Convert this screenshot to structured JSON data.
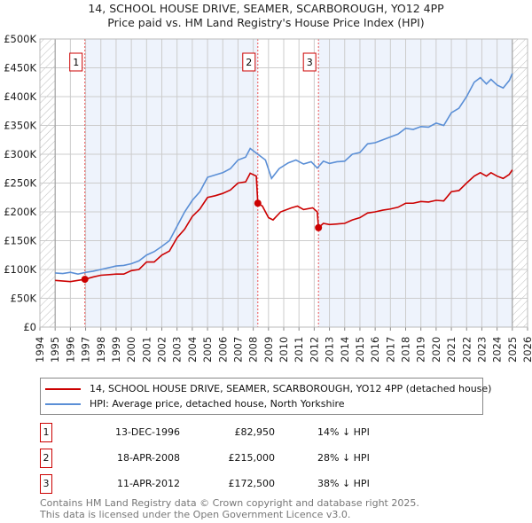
{
  "chart_data": {
    "type": "line",
    "title": "14, SCHOOL HOUSE DRIVE, SEAMER, SCARBOROUGH, YO12 4PP",
    "subtitle": "Price paid vs. HM Land Registry's House Price Index (HPI)",
    "xlim": [
      1994,
      2026
    ],
    "ylim": [
      0,
      500000
    ],
    "xticks": [
      "1994",
      "1995",
      "1996",
      "1997",
      "1998",
      "1999",
      "2000",
      "2001",
      "2002",
      "2003",
      "2004",
      "2005",
      "2006",
      "2007",
      "2008",
      "2009",
      "2010",
      "2011",
      "2012",
      "2013",
      "2014",
      "2015",
      "2016",
      "2017",
      "2018",
      "2019",
      "2020",
      "2021",
      "2022",
      "2023",
      "2024",
      "2025",
      "2026"
    ],
    "yticks": [
      {
        "v": 0,
        "l": "£0"
      },
      {
        "v": 50000,
        "l": "£50K"
      },
      {
        "v": 100000,
        "l": "£100K"
      },
      {
        "v": 150000,
        "l": "£150K"
      },
      {
        "v": 200000,
        "l": "£200K"
      },
      {
        "v": 250000,
        "l": "£250K"
      },
      {
        "v": 300000,
        "l": "£300K"
      },
      {
        "v": 350000,
        "l": "£350K"
      },
      {
        "v": 400000,
        "l": "£400K"
      },
      {
        "v": 450000,
        "l": "£450K"
      },
      {
        "v": 500000,
        "l": "£500K"
      }
    ],
    "grid": true,
    "data_range": [
      1995,
      2025
    ],
    "series": [
      {
        "name": "14, SCHOOL HOUSE DRIVE, SEAMER, SCARBOROUGH, YO12 4PP (detached house)",
        "color": "#cc0000",
        "x": [
          1995,
          1996,
          1996.95,
          1997.5,
          1998,
          1999,
          1999.5,
          2000,
          2000.5,
          2001,
          2001.5,
          2002,
          2002.5,
          2003,
          2003.5,
          2004,
          2004.5,
          2005,
          2005.5,
          2006,
          2006.5,
          2007,
          2007.5,
          2007.8,
          2008.2,
          2008.3,
          2008.6,
          2009,
          2009.3,
          2009.8,
          2010.5,
          2010.9,
          2011.3,
          2011.9,
          2012.2,
          2012.28,
          2012.6,
          2013,
          2014,
          2014.5,
          2015,
          2015.5,
          2016,
          2016.5,
          2017,
          2017.5,
          2018,
          2018.5,
          2019,
          2019.5,
          2020,
          2020.5,
          2021,
          2021.5,
          2022,
          2022.5,
          2022.9,
          2023.3,
          2023.6,
          2024,
          2024.4,
          2024.8,
          2025
        ],
        "y": [
          81000,
          79000,
          82950,
          87000,
          90000,
          92000,
          92000,
          98000,
          100000,
          113000,
          113000,
          125000,
          132000,
          155000,
          170000,
          192000,
          205000,
          225000,
          228000,
          232000,
          238000,
          250000,
          252000,
          267000,
          262000,
          215000,
          210000,
          190000,
          186000,
          200000,
          207000,
          210000,
          204000,
          207000,
          200000,
          172500,
          180000,
          178000,
          180000,
          186000,
          190000,
          198000,
          200000,
          203000,
          205000,
          208000,
          215000,
          215000,
          218000,
          217000,
          220000,
          219000,
          235000,
          237000,
          250000,
          262000,
          268000,
          262000,
          268000,
          262000,
          258000,
          265000,
          273000
        ]
      },
      {
        "name": "HPI: Average price, detached house, North Yorkshire",
        "color": "#5b8fd6",
        "x": [
          1995,
          1995.5,
          1996,
          1996.5,
          1997,
          1997.5,
          1998,
          1998.5,
          1999,
          1999.5,
          2000,
          2000.5,
          2001,
          2001.5,
          2002,
          2002.5,
          2003,
          2003.5,
          2004,
          2004.5,
          2005,
          2005.5,
          2006,
          2006.5,
          2007,
          2007.5,
          2007.8,
          2008.3,
          2008.8,
          2009.2,
          2009.7,
          2010.3,
          2010.8,
          2011.3,
          2011.8,
          2012.2,
          2012.6,
          2013,
          2013.5,
          2014,
          2014.5,
          2015,
          2015.5,
          2016,
          2016.5,
          2017,
          2017.5,
          2018,
          2018.5,
          2019,
          2019.5,
          2020,
          2020.5,
          2021,
          2021.5,
          2022,
          2022.5,
          2022.9,
          2023.3,
          2023.6,
          2024,
          2024.4,
          2024.8,
          2025
        ],
        "y": [
          94000,
          93000,
          95000,
          92000,
          95000,
          97000,
          100000,
          103000,
          106000,
          107000,
          110000,
          115000,
          125000,
          131000,
          140000,
          150000,
          175000,
          200000,
          220000,
          235000,
          260000,
          264000,
          268000,
          275000,
          290000,
          295000,
          310000,
          300000,
          290000,
          258000,
          275000,
          285000,
          290000,
          283000,
          287000,
          276000,
          288000,
          284000,
          287000,
          288000,
          300000,
          303000,
          318000,
          320000,
          325000,
          330000,
          335000,
          345000,
          343000,
          348000,
          347000,
          354000,
          350000,
          372000,
          380000,
          400000,
          425000,
          433000,
          422000,
          430000,
          420000,
          415000,
          428000,
          440000
        ]
      }
    ],
    "sales": [
      {
        "label": "1",
        "x": 1996.95,
        "y": 82950,
        "date": "13-DEC-1996",
        "price": "£82,950",
        "hpi": "14% ↓ HPI"
      },
      {
        "label": "2",
        "x": 2008.3,
        "y": 215000,
        "date": "18-APR-2008",
        "price": "£215,000",
        "hpi": "28% ↓ HPI"
      },
      {
        "label": "3",
        "x": 2012.28,
        "y": 172500,
        "date": "11-APR-2012",
        "price": "£172,500",
        "hpi": "38% ↓ HPI"
      }
    ]
  },
  "footer": {
    "line1": "Contains HM Land Registry data © Crown copyright and database right 2025.",
    "line2": "This data is licensed under the Open Government Licence v3.0."
  }
}
